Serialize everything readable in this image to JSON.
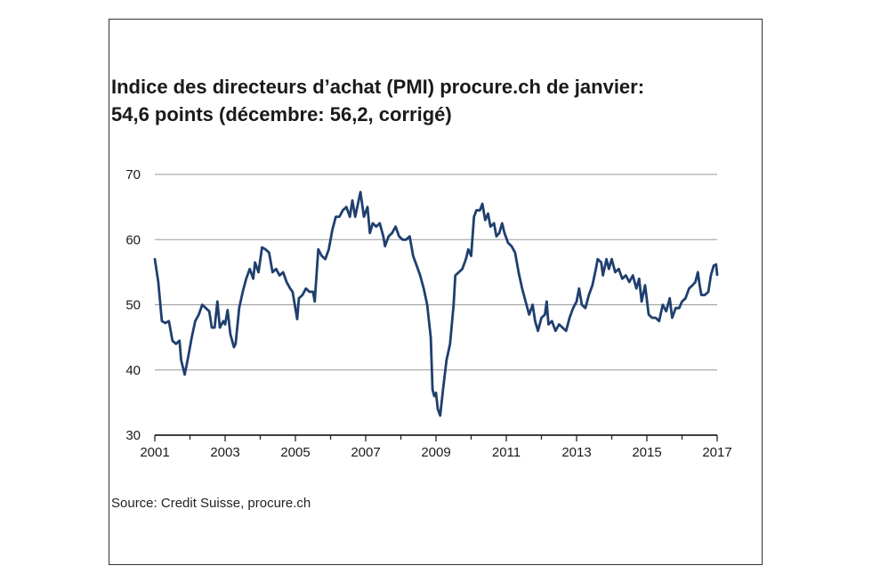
{
  "title_line1": "Indice des directeurs d’achat (PMI) procure.ch de janvier:",
  "title_line2": "54,6 points (décembre: 56,2, corrigé)",
  "source": "Source: Credit Suisse, procure.ch",
  "colors": {
    "line": "#1f3f6e",
    "grid": "#9a9a9a",
    "axis": "#222222",
    "text": "#1a1a1a"
  },
  "chart_data": {
    "type": "line",
    "title": "Indice des directeurs d’achat (PMI) procure.ch de janvier: 54,6 points (décembre: 56,2, corrigé)",
    "xlabel": "",
    "ylabel": "",
    "xlim": [
      2001,
      2017
    ],
    "ylim": [
      30,
      70
    ],
    "x_ticks": [
      "2001",
      "2003",
      "2005",
      "2007",
      "2009",
      "2011",
      "2013",
      "2015",
      "2017"
    ],
    "y_ticks": [
      "30",
      "40",
      "50",
      "60",
      "70"
    ],
    "grid": "horizontal",
    "series": [
      {
        "values": [
          [
            2001.0,
            57.0
          ],
          [
            2001.1,
            53.5
          ],
          [
            2001.2,
            47.5
          ],
          [
            2001.3,
            47.2
          ],
          [
            2001.4,
            47.5
          ],
          [
            2001.5,
            44.5
          ],
          [
            2001.6,
            44.0
          ],
          [
            2001.7,
            44.5
          ],
          [
            2001.75,
            41.5
          ],
          [
            2001.85,
            39.3
          ],
          [
            2001.95,
            42.0
          ],
          [
            2002.05,
            45.0
          ],
          [
            2002.15,
            47.5
          ],
          [
            2002.25,
            48.5
          ],
          [
            2002.35,
            50.0
          ],
          [
            2002.45,
            49.5
          ],
          [
            2002.55,
            49.0
          ],
          [
            2002.62,
            46.5
          ],
          [
            2002.7,
            46.5
          ],
          [
            2002.78,
            50.5
          ],
          [
            2002.85,
            46.5
          ],
          [
            2002.95,
            47.5
          ],
          [
            2003.0,
            47.0
          ],
          [
            2003.07,
            49.2
          ],
          [
            2003.15,
            45.5
          ],
          [
            2003.25,
            43.5
          ],
          [
            2003.3,
            44.0
          ],
          [
            2003.4,
            49.5
          ],
          [
            2003.5,
            52.0
          ],
          [
            2003.6,
            54.0
          ],
          [
            2003.7,
            55.5
          ],
          [
            2003.8,
            54.0
          ],
          [
            2003.85,
            56.5
          ],
          [
            2003.95,
            55.0
          ],
          [
            2004.05,
            58.8
          ],
          [
            2004.15,
            58.5
          ],
          [
            2004.25,
            58.0
          ],
          [
            2004.35,
            55.0
          ],
          [
            2004.45,
            55.5
          ],
          [
            2004.55,
            54.5
          ],
          [
            2004.65,
            55.0
          ],
          [
            2004.75,
            53.5
          ],
          [
            2004.85,
            52.5
          ],
          [
            2004.92,
            52.0
          ],
          [
            2005.05,
            47.8
          ],
          [
            2005.1,
            51.0
          ],
          [
            2005.2,
            51.5
          ],
          [
            2005.3,
            52.5
          ],
          [
            2005.4,
            52.0
          ],
          [
            2005.5,
            52.0
          ],
          [
            2005.55,
            50.5
          ],
          [
            2005.65,
            58.5
          ],
          [
            2005.75,
            57.5
          ],
          [
            2005.85,
            57.0
          ],
          [
            2005.95,
            58.5
          ],
          [
            2006.05,
            61.5
          ],
          [
            2006.15,
            63.5
          ],
          [
            2006.25,
            63.5
          ],
          [
            2006.35,
            64.5
          ],
          [
            2006.45,
            65.0
          ],
          [
            2006.55,
            63.5
          ],
          [
            2006.62,
            66.0
          ],
          [
            2006.7,
            63.5
          ],
          [
            2006.78,
            65.5
          ],
          [
            2006.85,
            67.3
          ],
          [
            2006.95,
            63.5
          ],
          [
            2007.05,
            65.0
          ],
          [
            2007.12,
            61.0
          ],
          [
            2007.2,
            62.5
          ],
          [
            2007.3,
            62.0
          ],
          [
            2007.4,
            62.5
          ],
          [
            2007.5,
            60.5
          ],
          [
            2007.55,
            59.0
          ],
          [
            2007.65,
            60.5
          ],
          [
            2007.75,
            61.0
          ],
          [
            2007.85,
            62.0
          ],
          [
            2007.95,
            60.5
          ],
          [
            2008.05,
            60.0
          ],
          [
            2008.15,
            60.0
          ],
          [
            2008.25,
            60.5
          ],
          [
            2008.35,
            57.5
          ],
          [
            2008.45,
            56.0
          ],
          [
            2008.55,
            54.5
          ],
          [
            2008.65,
            52.5
          ],
          [
            2008.75,
            50.0
          ],
          [
            2008.85,
            45.0
          ],
          [
            2008.9,
            37.0
          ],
          [
            2008.95,
            36.0
          ],
          [
            2009.0,
            36.5
          ],
          [
            2009.05,
            34.0
          ],
          [
            2009.12,
            33.0
          ],
          [
            2009.2,
            37.0
          ],
          [
            2009.3,
            41.5
          ],
          [
            2009.4,
            44.0
          ],
          [
            2009.5,
            50.0
          ],
          [
            2009.55,
            54.5
          ],
          [
            2009.65,
            55.0
          ],
          [
            2009.75,
            55.5
          ],
          [
            2009.85,
            57.0
          ],
          [
            2009.92,
            58.5
          ],
          [
            2010.0,
            57.5
          ],
          [
            2010.08,
            63.5
          ],
          [
            2010.15,
            64.5
          ],
          [
            2010.25,
            64.5
          ],
          [
            2010.32,
            65.5
          ],
          [
            2010.4,
            63.0
          ],
          [
            2010.48,
            64.0
          ],
          [
            2010.55,
            62.0
          ],
          [
            2010.65,
            62.5
          ],
          [
            2010.72,
            60.5
          ],
          [
            2010.8,
            61.0
          ],
          [
            2010.88,
            62.5
          ],
          [
            2010.95,
            61.0
          ],
          [
            2011.05,
            59.5
          ],
          [
            2011.15,
            59.0
          ],
          [
            2011.25,
            58.0
          ],
          [
            2011.35,
            55.0
          ],
          [
            2011.45,
            52.5
          ],
          [
            2011.55,
            50.5
          ],
          [
            2011.65,
            48.5
          ],
          [
            2011.75,
            50.0
          ],
          [
            2011.82,
            47.5
          ],
          [
            2011.9,
            46.0
          ],
          [
            2012.0,
            48.0
          ],
          [
            2012.1,
            48.5
          ],
          [
            2012.15,
            50.5
          ],
          [
            2012.2,
            47.0
          ],
          [
            2012.3,
            47.5
          ],
          [
            2012.4,
            46.0
          ],
          [
            2012.5,
            47.0
          ],
          [
            2012.6,
            46.5
          ],
          [
            2012.7,
            46.0
          ],
          [
            2012.8,
            48.0
          ],
          [
            2012.9,
            49.5
          ],
          [
            2013.0,
            50.5
          ],
          [
            2013.07,
            52.5
          ],
          [
            2013.15,
            50.0
          ],
          [
            2013.25,
            49.5
          ],
          [
            2013.35,
            51.5
          ],
          [
            2013.45,
            53.0
          ],
          [
            2013.55,
            55.5
          ],
          [
            2013.6,
            57.0
          ],
          [
            2013.7,
            56.5
          ],
          [
            2013.75,
            54.5
          ],
          [
            2013.85,
            57.0
          ],
          [
            2013.92,
            55.5
          ],
          [
            2014.0,
            57.0
          ],
          [
            2014.1,
            55.0
          ],
          [
            2014.2,
            55.5
          ],
          [
            2014.3,
            54.0
          ],
          [
            2014.4,
            54.5
          ],
          [
            2014.5,
            53.5
          ],
          [
            2014.6,
            54.5
          ],
          [
            2014.7,
            52.5
          ],
          [
            2014.78,
            54.0
          ],
          [
            2014.85,
            50.5
          ],
          [
            2014.95,
            53.0
          ],
          [
            2015.05,
            48.5
          ],
          [
            2015.15,
            48.0
          ],
          [
            2015.25,
            48.0
          ],
          [
            2015.35,
            47.5
          ],
          [
            2015.45,
            50.0
          ],
          [
            2015.55,
            49.0
          ],
          [
            2015.65,
            51.0
          ],
          [
            2015.72,
            48.0
          ],
          [
            2015.82,
            49.5
          ],
          [
            2015.92,
            49.5
          ],
          [
            2016.0,
            50.5
          ],
          [
            2016.1,
            51.0
          ],
          [
            2016.2,
            52.5
          ],
          [
            2016.3,
            53.0
          ],
          [
            2016.38,
            53.5
          ],
          [
            2016.45,
            55.0
          ],
          [
            2016.5,
            53.0
          ],
          [
            2016.55,
            51.5
          ],
          [
            2016.65,
            51.5
          ],
          [
            2016.75,
            52.0
          ],
          [
            2016.82,
            54.5
          ],
          [
            2016.9,
            56.0
          ],
          [
            2016.97,
            56.2
          ],
          [
            2017.0,
            54.6
          ]
        ]
      }
    ]
  }
}
